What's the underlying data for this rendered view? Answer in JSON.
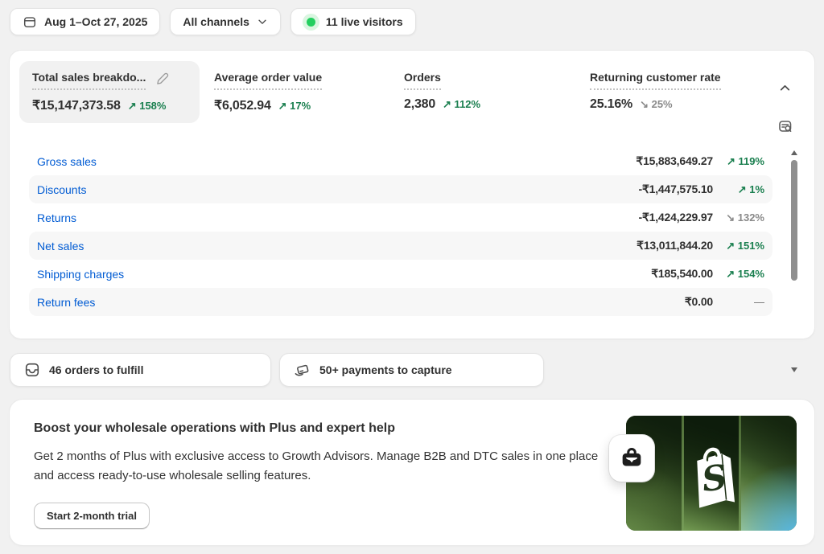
{
  "topbar": {
    "date_range": "Aug 1–Oct 27, 2025",
    "channels_label": "All channels",
    "live_visitors": "11 live visitors"
  },
  "metrics": {
    "items": [
      {
        "label": "Total sales breakdo...",
        "value": "₹15,147,373.58",
        "delta": "158%",
        "direction": "up",
        "selected": true,
        "editable": true
      },
      {
        "label": "Average order value",
        "value": "₹6,052.94",
        "delta": "17%",
        "direction": "up",
        "selected": false,
        "editable": false
      },
      {
        "label": "Orders",
        "value": "2,380",
        "delta": "112%",
        "direction": "up",
        "selected": false,
        "editable": false
      },
      {
        "label": "Returning customer rate",
        "value": "25.16%",
        "delta": "25%",
        "direction": "down",
        "selected": false,
        "editable": false
      }
    ]
  },
  "breakdown": {
    "rows": [
      {
        "label": "Gross sales",
        "value": "₹15,883,649.27",
        "delta": "119%",
        "direction": "up"
      },
      {
        "label": "Discounts",
        "value": "-₹1,447,575.10",
        "delta": "1%",
        "direction": "up"
      },
      {
        "label": "Returns",
        "value": "-₹1,424,229.97",
        "delta": "132%",
        "direction": "down"
      },
      {
        "label": "Net sales",
        "value": "₹13,011,844.20",
        "delta": "151%",
        "direction": "up"
      },
      {
        "label": "Shipping charges",
        "value": "₹185,540.00",
        "delta": "154%",
        "direction": "up"
      },
      {
        "label": "Return fees",
        "value": "₹0.00",
        "delta": "—",
        "direction": "none"
      }
    ]
  },
  "tasks": [
    {
      "label": "46 orders to fulfill"
    },
    {
      "label": "50+ payments to capture"
    }
  ],
  "promo": {
    "title": "Boost your wholesale operations with Plus and expert help",
    "body": "Get 2 months of Plus with exclusive access to Growth Advisors. Manage B2B and DTC sales in one place and access ready-to-use wholesale selling features.",
    "cta_label": "Start 2-month trial",
    "logo_letter": "S"
  },
  "colors": {
    "accent_green": "#1a7f4f",
    "muted_gray": "#8a8a8a",
    "link_blue": "#005bd3",
    "live_dot_green": "#23cf5f"
  },
  "glyphs": {
    "up_arrow": "↗",
    "down_arrow": "↘"
  }
}
